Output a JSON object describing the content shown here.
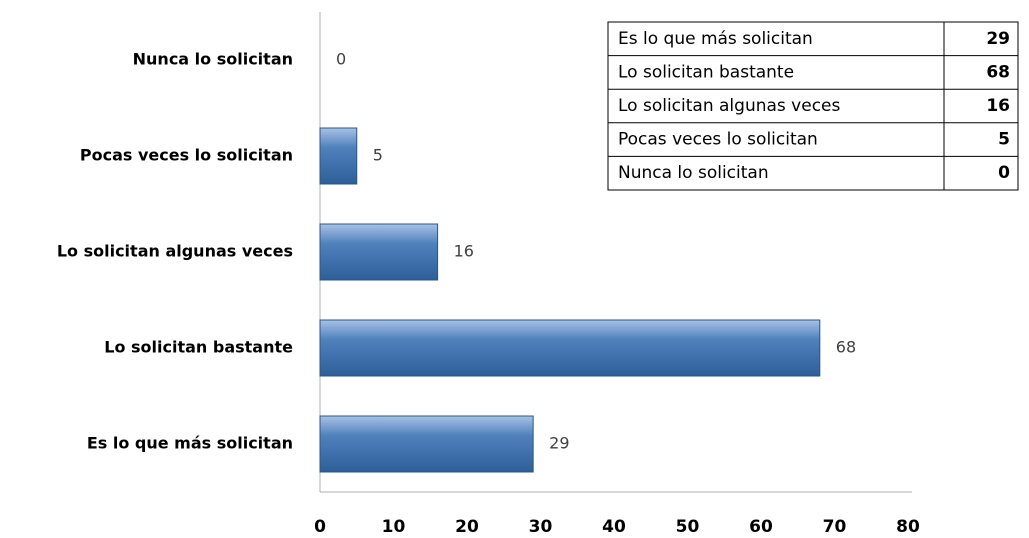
{
  "chart_data": {
    "type": "bar",
    "orientation": "horizontal",
    "categories": [
      "Es lo que más solicitan",
      "Lo solicitan bastante",
      "Lo solicitan algunas veces",
      "Pocas veces lo solicitan",
      "Nunca lo solicitan"
    ],
    "values": [
      29,
      68,
      16,
      5,
      0
    ],
    "color": "#4f81bd",
    "xlim": [
      0,
      80
    ],
    "xticks": [
      0,
      10,
      20,
      30,
      40,
      50,
      60,
      70,
      80
    ],
    "grid": false
  }
}
